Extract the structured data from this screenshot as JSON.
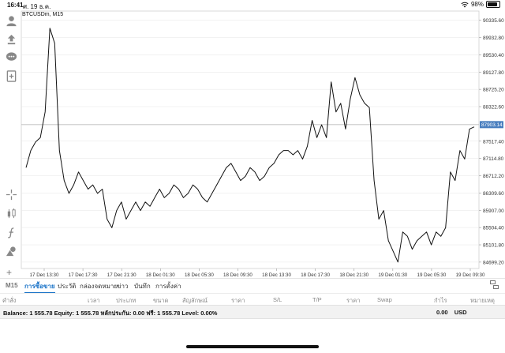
{
  "status_bar": {
    "time": "16:41",
    "date": "ศ. 19 ธ.ค.",
    "battery": "98%"
  },
  "chart": {
    "symbol": "BTCUSDm, M15",
    "current_price": "87903.14",
    "colors": {
      "line": "#111111",
      "price_tag": "#4a7fbf",
      "grid": "#e6e6e6"
    }
  },
  "chart_data": {
    "type": "line",
    "symbol": "BTCUSDm",
    "timeframe": "M15",
    "x_ticks": [
      "17 Dec 13:30",
      "17 Dec 17:30",
      "17 Dec 21:30",
      "18 Dec 01:30",
      "18 Dec 05:30",
      "18 Dec 09:30",
      "18 Dec 13:30",
      "18 Dec 17:30",
      "18 Dec 21:30",
      "19 Dec 01:30",
      "19 Dec 05:30",
      "19 Dec 09:30"
    ],
    "y_ticks": [
      90335.6,
      89932.8,
      89530.4,
      89127.8,
      88725.2,
      88322.6,
      87517.4,
      87114.8,
      86712.2,
      86309.6,
      85907.0,
      85504.4,
      85101.8,
      84699.2
    ],
    "ylim": [
      84550,
      90550
    ],
    "current_price": 87903.14,
    "series": [
      {
        "x": [
          0,
          0.5,
          1,
          1.5,
          2,
          2.5,
          3,
          3.5,
          4,
          4.5,
          5,
          5.5,
          6,
          6.5,
          7,
          7.5,
          8,
          8.5,
          9,
          9.5,
          10,
          10.5,
          11,
          11.5,
          12,
          12.5,
          13,
          13.5,
          14,
          14.5,
          15,
          15.5,
          16,
          16.5,
          17,
          17.5,
          18,
          18.5,
          19,
          19.5,
          20,
          20.5,
          21,
          21.5,
          22,
          22.5,
          23,
          23.5,
          24,
          24.5,
          25,
          25.5,
          26,
          26.5,
          27,
          27.5,
          28,
          28.5,
          29,
          29.5,
          30,
          30.5,
          31,
          31.5,
          32,
          32.5,
          33,
          33.5,
          34,
          34.5,
          35,
          35.5,
          36,
          36.5,
          37,
          37.5,
          38,
          38.5,
          39,
          39.5,
          40,
          40.5,
          41,
          41.5,
          42,
          42.5,
          43,
          43.5,
          44,
          44.5,
          45,
          45.5,
          46,
          46.5,
          47
        ],
        "values": [
          86900,
          87300,
          87500,
          87600,
          88200,
          90150,
          89800,
          87300,
          86600,
          86300,
          86500,
          86800,
          86600,
          86400,
          86500,
          86300,
          86400,
          85700,
          85500,
          85900,
          86100,
          85700,
          85900,
          86100,
          85900,
          86100,
          86000,
          86200,
          86400,
          86200,
          86300,
          86500,
          86400,
          86200,
          86300,
          86500,
          86400,
          86200,
          86100,
          86300,
          86500,
          86700,
          86900,
          87000,
          86800,
          86600,
          86700,
          86900,
          86800,
          86600,
          86700,
          86900,
          87000,
          87200,
          87300,
          87300,
          87200,
          87300,
          87100,
          87400,
          88000,
          87600,
          87900,
          87600,
          88900,
          88200,
          88400,
          87800,
          88500,
          89000,
          88600,
          88400,
          88300,
          86600,
          85700,
          85900,
          85200,
          84950,
          84700,
          85400,
          85300,
          85000,
          85200,
          85300,
          85400,
          85100,
          85400,
          85300,
          85500,
          86800,
          86600,
          87300,
          87100,
          87800,
          87850
        ]
      }
    ]
  },
  "tabs": {
    "timeframe": "M15",
    "items": [
      {
        "label": "การซื้อขาย",
        "active": true
      },
      {
        "label": "ประวัติ",
        "active": false
      },
      {
        "label": "กล่องจดหมาย",
        "active": false
      },
      {
        "label": "ข่าว",
        "active": false
      },
      {
        "label": "บันทึก",
        "active": false
      },
      {
        "label": "การตั้งค่า",
        "active": false
      }
    ]
  },
  "columns": [
    "คำสั่ง",
    "เวลา",
    "ประเภท",
    "ขนาด",
    "สัญลักษณ์",
    "ราคา",
    "S/L",
    "T/P",
    "ราคา",
    "Swap",
    "กำไร",
    "หมายเหตุ"
  ],
  "account": {
    "summary": "Balance: 1 555.78 Equity: 1 555.78 หลักประกัน: 0.00 ฟรี: 1 555.78 Level: 0.00%",
    "profit": "0.00",
    "currency": "USD"
  },
  "icons": [
    "account-icon",
    "one-click-trade-icon",
    "chat-icon",
    "new-order-icon",
    "crosshair-icon",
    "candles-icon",
    "indicators-icon",
    "objects-icon",
    "add-icon",
    "panel-icon"
  ]
}
